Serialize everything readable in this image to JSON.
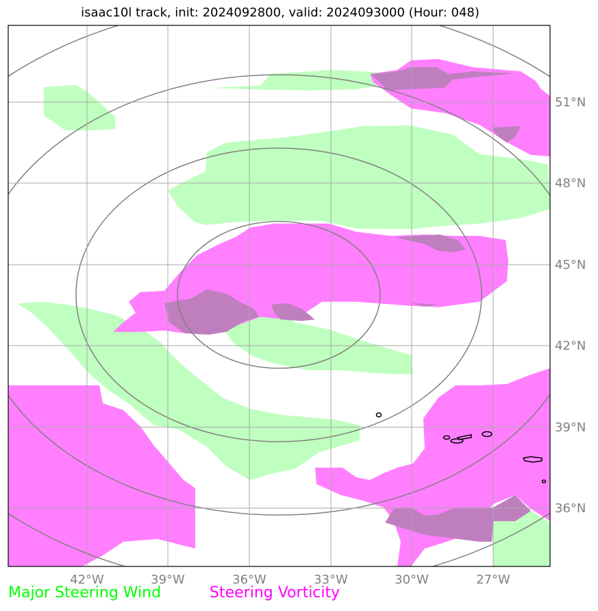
{
  "title": "isaac10l track, init: 2024092800, valid: 2024093000 (Hour: 048)",
  "lon_labels": [
    "42°W",
    "39°W",
    "36°W",
    "33°W",
    "30°W",
    "27°W"
  ],
  "lat_labels": [
    "51°N",
    "48°N",
    "45°N",
    "42°N",
    "39°N",
    "36°N"
  ],
  "legend": {
    "wind_label": "Major Steering Wind",
    "wind_color": "#00ff00",
    "vorticity_label": "Steering Vorticity",
    "vorticity_color": "#ff00ff"
  },
  "colors": {
    "wind_fill": "#bfffbf",
    "vorticity_fill": "#ff7fff",
    "overlap_fill": "#bf7fbf",
    "range_ring": "#808080",
    "gridline": "#a9a9a9",
    "tick_label": "#808080"
  }
}
